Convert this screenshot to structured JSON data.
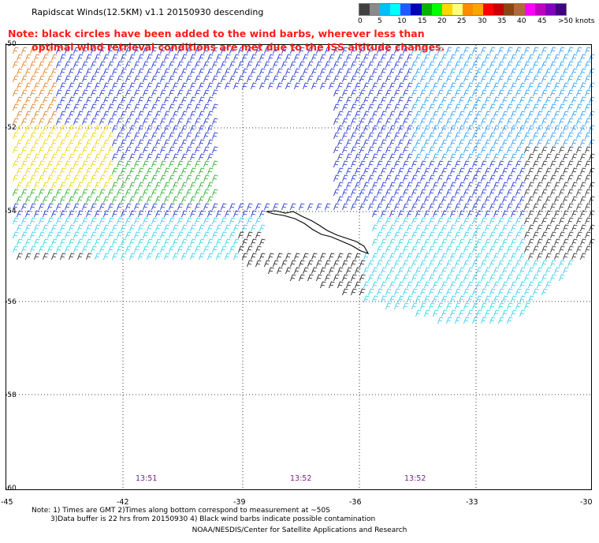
{
  "title": "Rapidscat Winds(12.5KM) v1.1 20150930 descending",
  "note": {
    "line1": "Note: black circles have been added to the wind barbs, wherever less than",
    "line2": "optimal wind retrieval conditions are met due to the ISS altitude changes."
  },
  "legend": {
    "labels": [
      "0",
      "5",
      "10",
      "15",
      "20",
      "25",
      "30",
      "35",
      "40",
      "45",
      ">50 knots"
    ],
    "colors": [
      "#404040",
      "#8a8a8a",
      "#00bfff",
      "#00ffff",
      "#1e5aff",
      "#0000b4",
      "#00b400",
      "#00ff00",
      "#ffd700",
      "#ffff7a",
      "#ff8c00",
      "#ffa500",
      "#ff0000",
      "#c80000",
      "#8b4513",
      "#b06a3a",
      "#ff00ff",
      "#c000c0",
      "#8000c0",
      "#400080"
    ]
  },
  "lat_labels": [
    "-50",
    "-52",
    "-54",
    "-56",
    "-58",
    "-60"
  ],
  "lon_labels": [
    "-45",
    "-42",
    "-39",
    "-36",
    "-33",
    "-30"
  ],
  "time_labels": [
    "13:51",
    "13:52",
    "13:52"
  ],
  "footer": {
    "line1": "Note: 1) Times are GMT 2)Times along bottom correspond to measurement at ~50S",
    "line2": "3)Data buffer is 22 hrs from 20150930 4) Black wind barbs indicate possible contamination",
    "credit": "NOAA/NESDIS/Center for Satellite Applications and Research"
  },
  "colors": {
    "note_red": "#ff1a1a",
    "time_purple": "#7a1e7a",
    "grid": "#000000"
  }
}
